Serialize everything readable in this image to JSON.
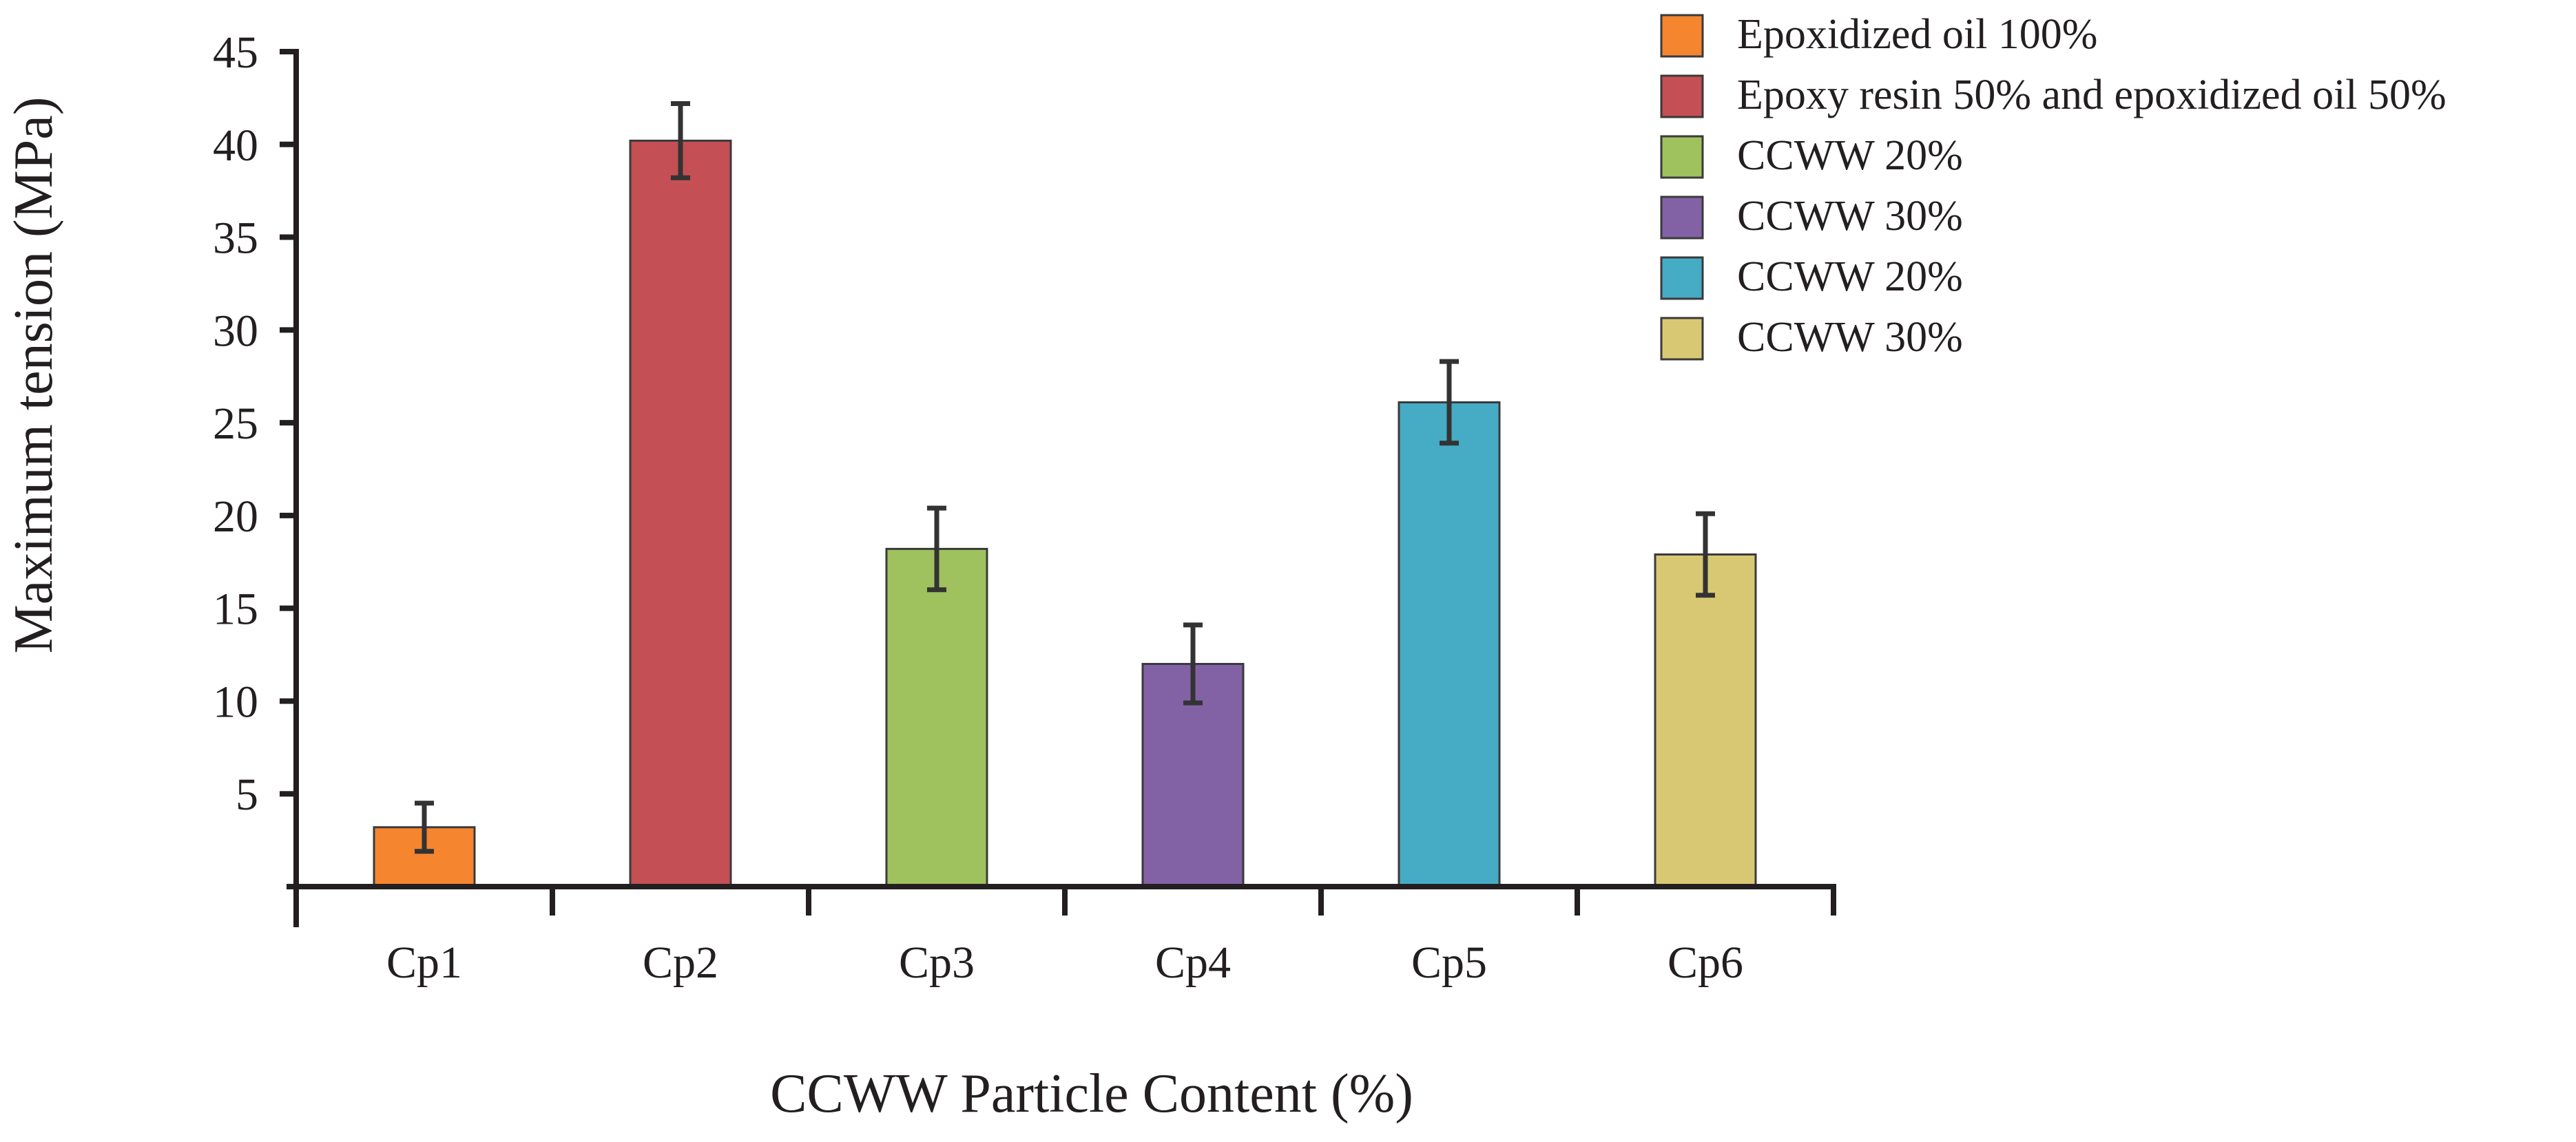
{
  "chart_data": {
    "type": "bar",
    "title": "",
    "xlabel": "CCWW Particle Content (%)",
    "ylabel": "Maximum tension (MPa)",
    "ylim": [
      0,
      45
    ],
    "yticks": [
      5,
      10,
      15,
      20,
      25,
      30,
      35,
      40,
      45
    ],
    "grid": false,
    "legend_position": "top-right",
    "categories": [
      "Cp1",
      "Cp2",
      "Cp3",
      "Cp4",
      "Cp5",
      "Cp6"
    ],
    "values": [
      3.2,
      40.2,
      18.2,
      12.0,
      26.1,
      17.9
    ],
    "errors": [
      1.3,
      2.0,
      2.2,
      2.1,
      2.2,
      2.2
    ],
    "colors": [
      "#f5852f",
      "#c44f54",
      "#9fc15e",
      "#8262a5",
      "#46abc5",
      "#d9c873"
    ],
    "legend": [
      {
        "label": "Epoxidized oil 100%",
        "color": "#f5852f"
      },
      {
        "label": "Epoxy resin 50% and epoxidized oil 50%",
        "color": "#c44f54"
      },
      {
        "label": "CCWW 20%",
        "color": "#9fc15e"
      },
      {
        "label": "CCWW 30%",
        "color": "#8262a5"
      },
      {
        "label": "CCWW 20%",
        "color": "#46abc5"
      },
      {
        "label": "CCWW 30%",
        "color": "#d9c873"
      }
    ]
  }
}
